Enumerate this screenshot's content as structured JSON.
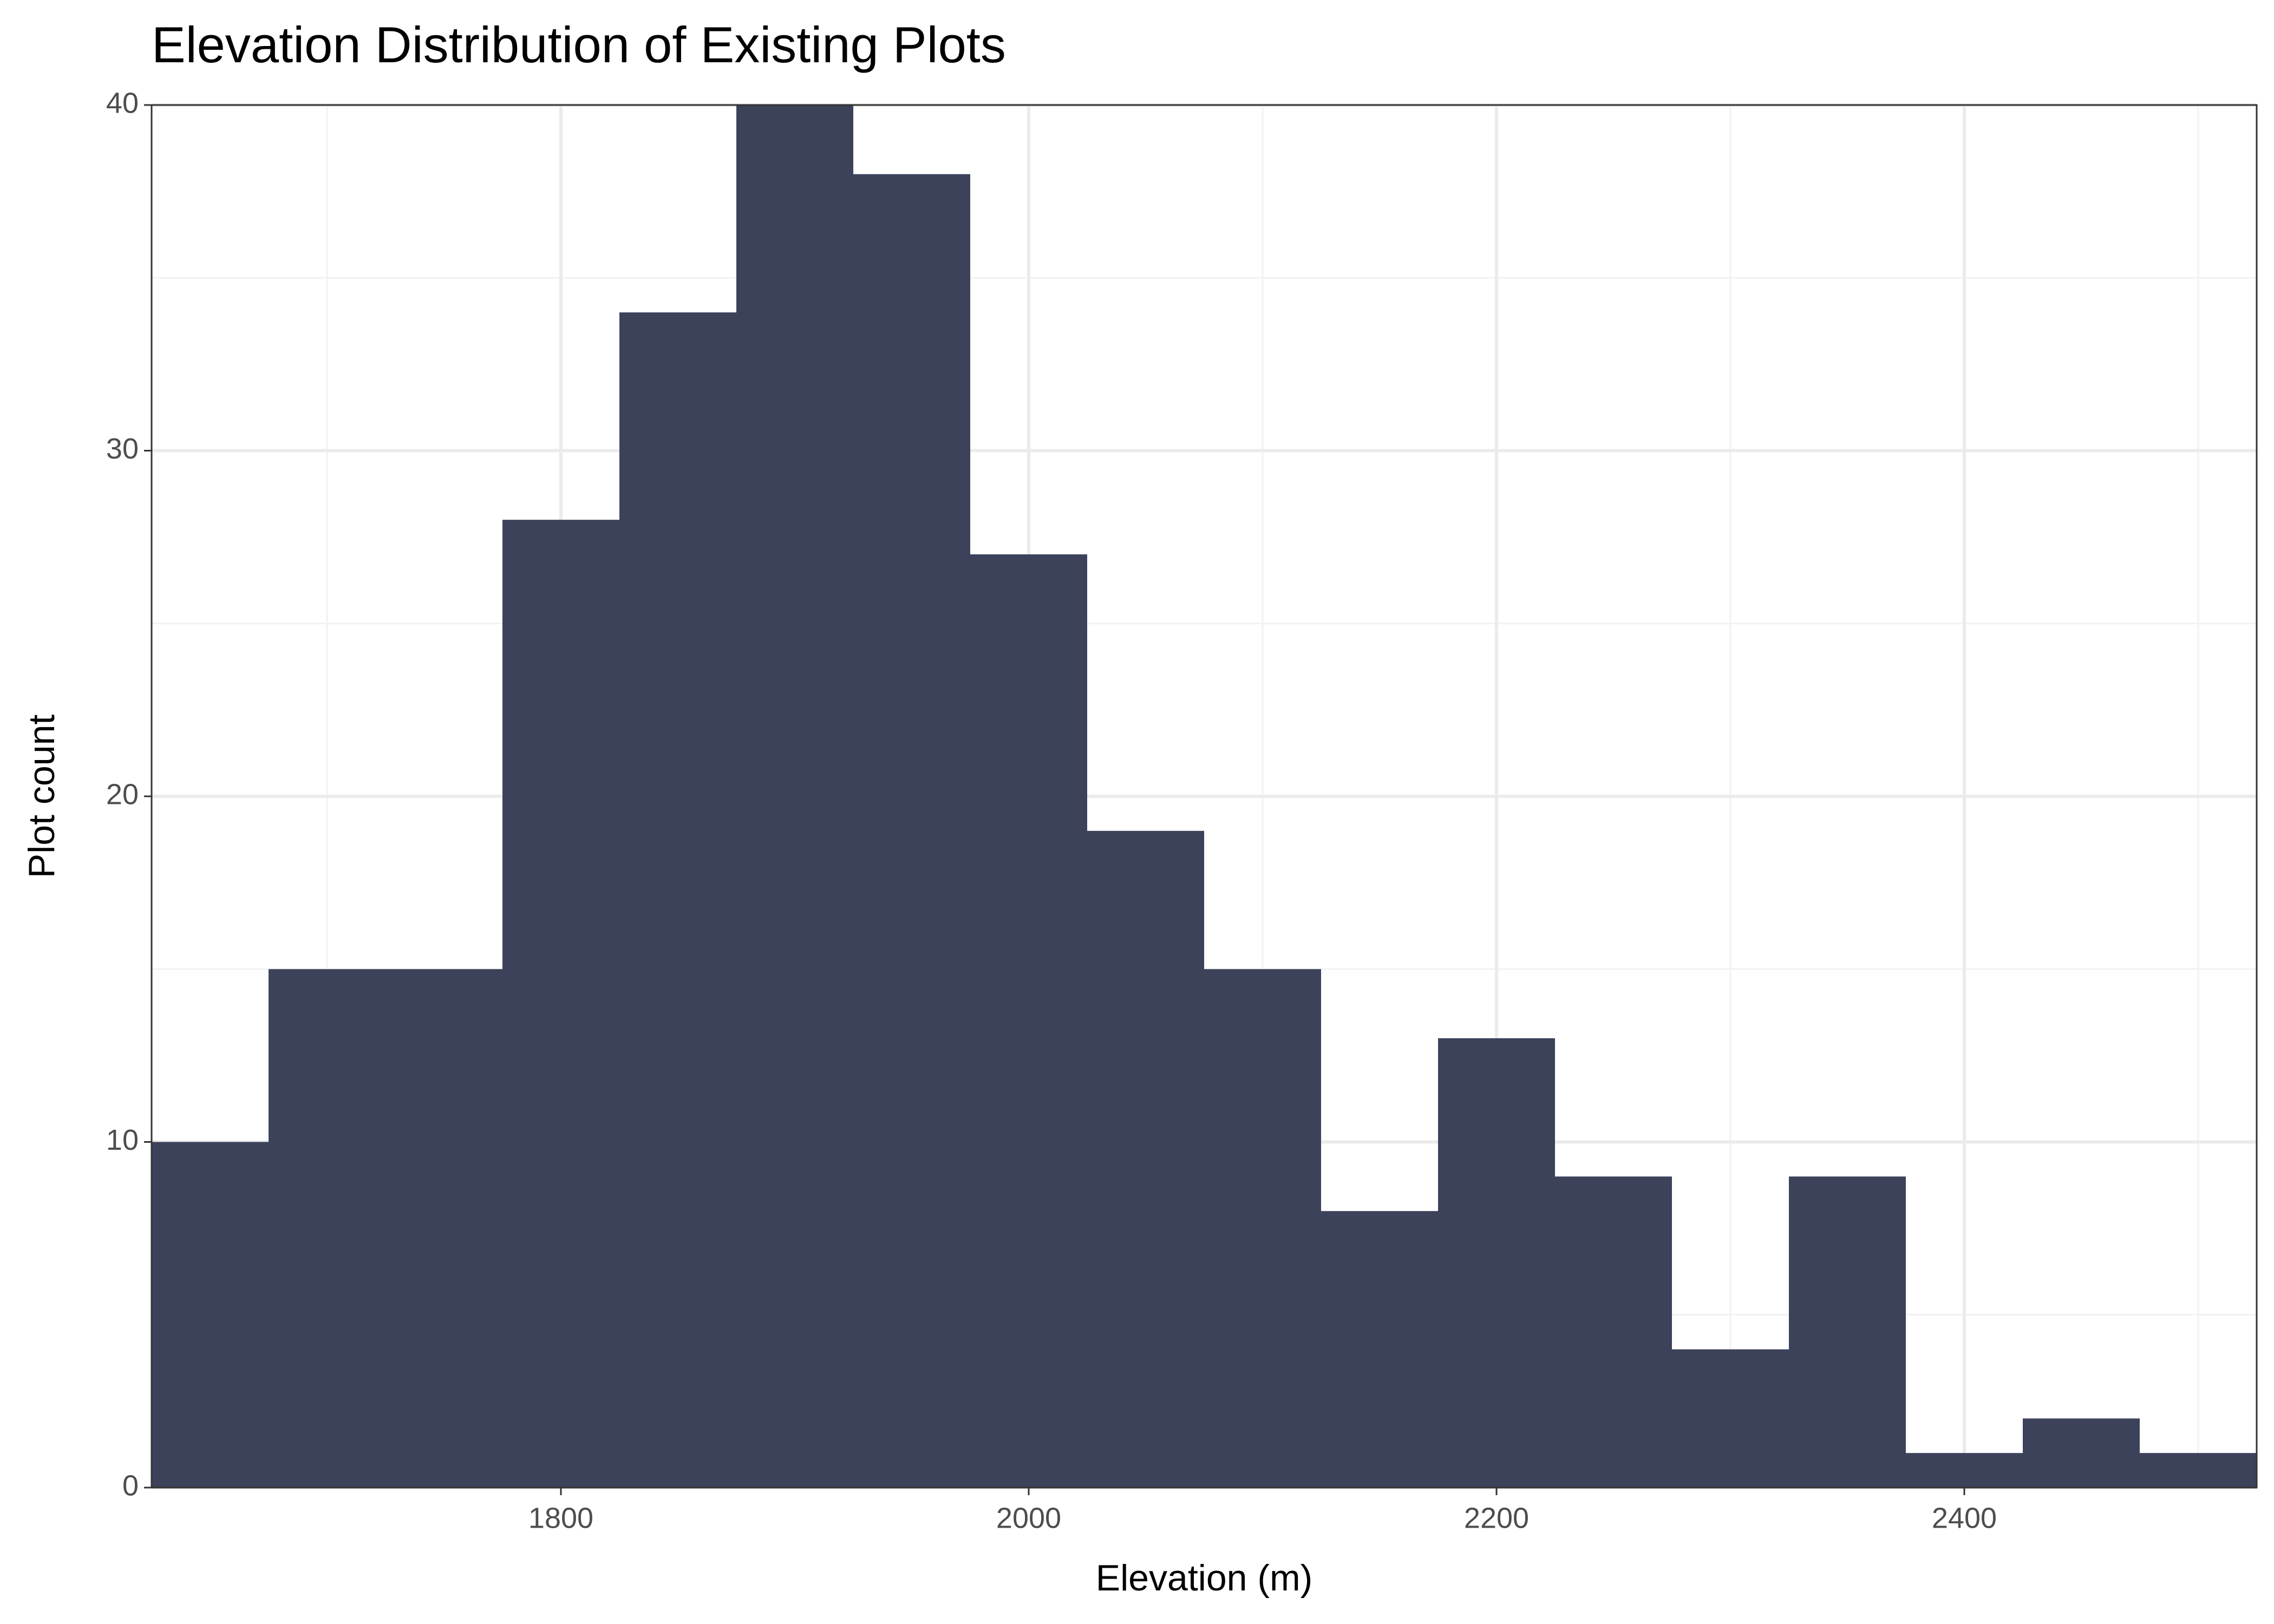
{
  "chart_data": {
    "type": "histogram",
    "title": "Elevation Distribution of Existing Plots",
    "x_label": "Elevation (m)",
    "y_label": "Plot count",
    "bins": [
      1625,
      1675,
      1725,
      1775,
      1825,
      1875,
      1925,
      1975,
      2025,
      2075,
      2125,
      2175,
      2225,
      2275,
      2325,
      2375,
      2425,
      2475,
      2525
    ],
    "values": [
      10,
      15,
      15,
      28,
      34,
      40,
      38,
      27,
      19,
      15,
      8,
      13,
      9,
      4,
      9,
      1,
      2,
      1
    ],
    "color": "#3d425b",
    "xlim": [
      1625,
      2525
    ],
    "xticks": [
      1800,
      2000,
      2200,
      2400
    ],
    "ylim": [
      0,
      40
    ],
    "yticks": [
      0,
      10,
      20,
      30,
      40
    ],
    "grid": true
  }
}
